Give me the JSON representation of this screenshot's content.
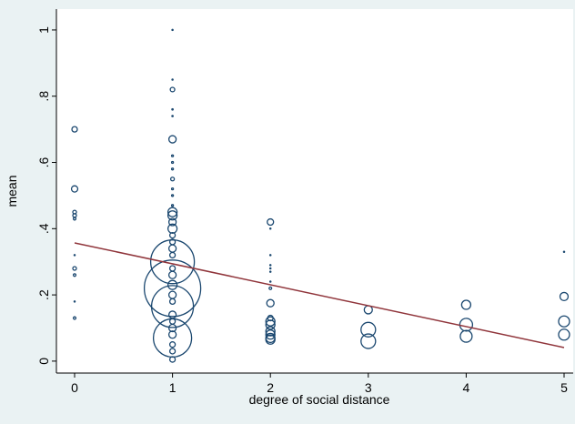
{
  "chart_data": {
    "type": "scatter",
    "xlabel": "degree of social distance",
    "ylabel": "mean",
    "xlim": [
      -0.186,
      5.093
    ],
    "ylim": [
      -0.036,
      1.063
    ],
    "xticks": [
      0,
      1,
      2,
      3,
      4,
      5
    ],
    "yticks": [
      0,
      {
        "value": 0.2,
        "label": ".2"
      },
      {
        "value": 0.4,
        "label": ".4"
      },
      {
        "value": 0.6,
        "label": ".6"
      },
      {
        "value": 0.8,
        "label": ".8"
      },
      1
    ],
    "series": [
      {
        "type": "scatter",
        "color": "#1a476f",
        "x": [
          0,
          0,
          0,
          0,
          0,
          0,
          0,
          0,
          0,
          0,
          1,
          1,
          1,
          1,
          1,
          1,
          1,
          1,
          1,
          1,
          1,
          1,
          1,
          1,
          1,
          1,
          1,
          1,
          1,
          1,
          1,
          1,
          1,
          1,
          1,
          1,
          1,
          1,
          1,
          1,
          1,
          1,
          1,
          1,
          1,
          1,
          1,
          2,
          2,
          2,
          2,
          2,
          2,
          2,
          2,
          2,
          2,
          2,
          2,
          2,
          2,
          2,
          2,
          3,
          3,
          3,
          4,
          4,
          4,
          5,
          5,
          5,
          5
        ],
        "values": [
          0.7,
          0.52,
          0.45,
          0.44,
          0.43,
          0.32,
          0.28,
          0.26,
          0.18,
          0.13,
          1.0,
          0.85,
          0.82,
          0.76,
          0.74,
          0.67,
          0.62,
          0.6,
          0.58,
          0.55,
          0.52,
          0.5,
          0.47,
          0.45,
          0.44,
          0.42,
          0.4,
          0.38,
          0.36,
          0.34,
          0.32,
          0.3,
          0.28,
          0.26,
          0.23,
          0.22,
          0.2,
          0.18,
          0.165,
          0.14,
          0.12,
          0.1,
          0.08,
          0.07,
          0.05,
          0.03,
          0.005,
          0.42,
          0.4,
          0.32,
          0.29,
          0.28,
          0.27,
          0.24,
          0.22,
          0.175,
          0.13,
          0.12,
          0.11,
          0.09,
          0.08,
          0.07,
          0.065,
          0.155,
          0.095,
          0.06,
          0.17,
          0.11,
          0.075,
          0.33,
          0.195,
          0.12,
          0.08
        ],
        "sizes": [
          9,
          12,
          4,
          4,
          2,
          0.3,
          4,
          2,
          0.3,
          2,
          0.3,
          0.3,
          6,
          0.5,
          0.5,
          16,
          1,
          1,
          1,
          4,
          1,
          1,
          1,
          25,
          25,
          16,
          25,
          9,
          9,
          16,
          9,
          576,
          9,
          16,
          25,
          961,
          16,
          9,
          529,
          16,
          9,
          16,
          16,
          441,
          9,
          9,
          9,
          12,
          0.3,
          0.3,
          0.3,
          0.3,
          0.3,
          0.3,
          2,
          16,
          9,
          25,
          25,
          25,
          25,
          25,
          25,
          20,
          64,
          64,
          25,
          49,
          42,
          0.3,
          20,
          36,
          36
        ]
      },
      {
        "type": "line",
        "color": "#90353b",
        "x": [
          0,
          5
        ],
        "values": [
          0.357,
          0.041
        ]
      }
    ]
  }
}
